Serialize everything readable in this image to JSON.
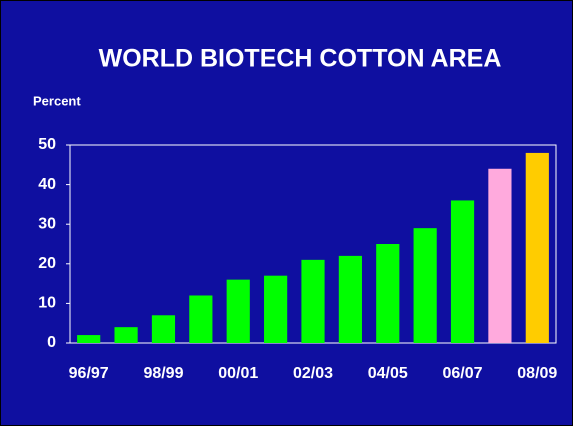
{
  "chart_data": {
    "type": "bar",
    "title": "WORLD BIOTECH COTTON AREA",
    "y_label": "Percent",
    "categories": [
      "96/97",
      null,
      "98/99",
      null,
      "00/01",
      null,
      "02/03",
      null,
      "04/05",
      null,
      "06/07",
      null,
      "08/09"
    ],
    "values": [
      2,
      4,
      7,
      12,
      16,
      17,
      21,
      22,
      25,
      29,
      36,
      44,
      48
    ],
    "colors": [
      "#00ff00",
      "#00ff00",
      "#00ff00",
      "#00ff00",
      "#00ff00",
      "#00ff00",
      "#00ff00",
      "#00ff00",
      "#00ff00",
      "#00ff00",
      "#00ff00",
      "#ffaadd",
      "#ffcc00"
    ],
    "ylim": [
      0,
      50
    ],
    "yticks": [
      0,
      10,
      20,
      30,
      40,
      50
    ],
    "grid": false
  }
}
